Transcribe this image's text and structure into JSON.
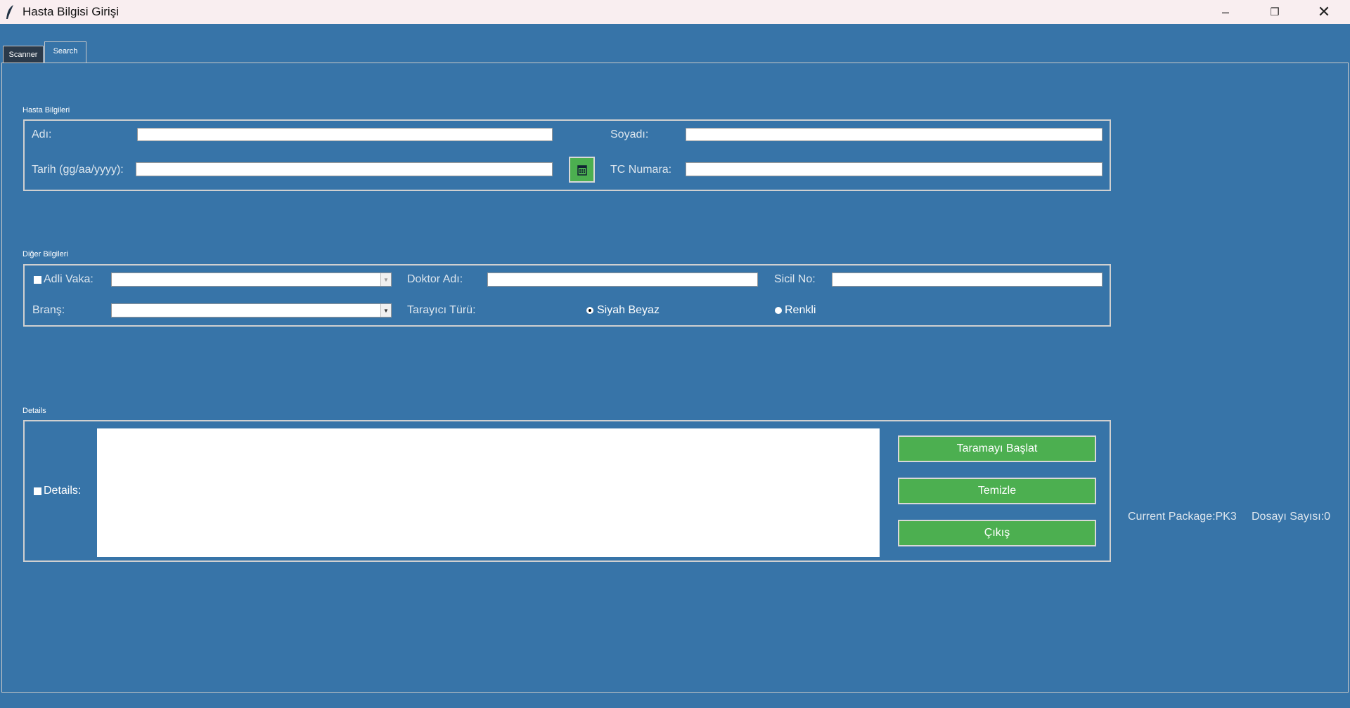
{
  "window": {
    "title": "Hasta Bilgisi Girişi",
    "icon": "feather-icon",
    "controls": [
      "minimize-icon",
      "restore-icon",
      "close-icon"
    ]
  },
  "tabs": [
    {
      "label": "Scanner",
      "active": true
    },
    {
      "label": "Search",
      "active": false
    }
  ],
  "hasta": {
    "title": "Hasta Bilgileri",
    "adi_label": "Adı:",
    "adi_value": "",
    "soyadi_label": "Soyadı:",
    "soyadi_value": "",
    "tarih_label": "Tarih (gg/aa/yyyy):",
    "tarih_value": "",
    "calendar_icon": "calendar-icon",
    "tc_label": "TC Numara:",
    "tc_value": ""
  },
  "diger": {
    "title": "Diğer Bilgileri",
    "adli_label": "Adli Vaka:",
    "adli_checked": false,
    "adli_value": "",
    "doktor_label": "Doktor Adı:",
    "doktor_value": "",
    "sicil_label": "Sicil No:",
    "sicil_value": "",
    "brans_label": "Branş:",
    "brans_value": "",
    "tarayici_label": "Tarayıcı Türü:",
    "radio_options": [
      "Siyah Beyaz",
      "Renkli"
    ],
    "radio_selected": "Siyah Beyaz"
  },
  "details": {
    "title": "Details",
    "label": "Details:",
    "checked": false,
    "text": ""
  },
  "buttons": {
    "start": "Taramayı Başlat",
    "clear": "Temizle",
    "exit": "Çıkış"
  },
  "status": {
    "package": "Current Package:PK3",
    "count": "Dosayı Sayısı:0"
  },
  "colors": {
    "background": "#3774a8",
    "button": "#4caf50",
    "titlebar": "#f9eef0"
  }
}
